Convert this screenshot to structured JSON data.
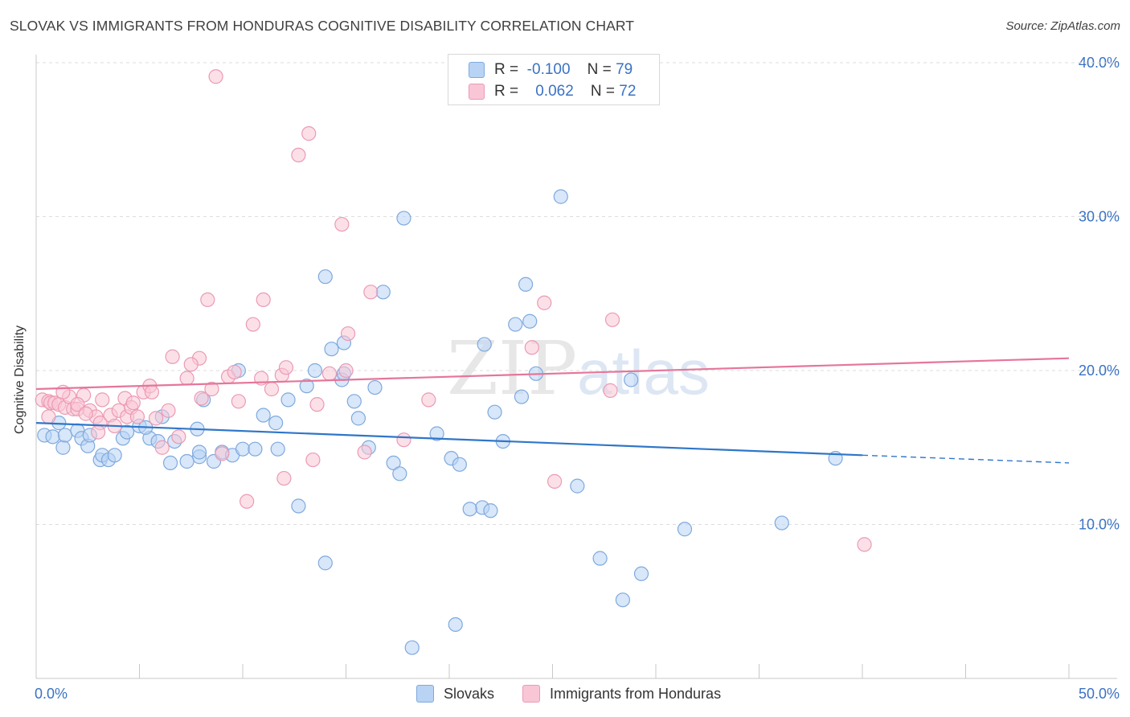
{
  "title": "SLOVAK VS IMMIGRANTS FROM HONDURAS COGNITIVE DISABILITY CORRELATION CHART",
  "source": "Source: ZipAtlas.com",
  "watermark": {
    "zip": "ZIP",
    "atlas": "atlas"
  },
  "legend_top": {
    "rows": [
      {
        "r_label": "R =",
        "r_value": "-0.100",
        "n_label": "N =",
        "n_value": "79"
      },
      {
        "r_label": "R =",
        "r_value": "0.062",
        "n_label": "N =",
        "n_value": "72"
      }
    ]
  },
  "legend_bottom": [
    "Slovaks",
    "Immigrants from Honduras"
  ],
  "colors": {
    "slovaks_fill": "#b8d3f4",
    "slovaks_stroke": "#7fa9de",
    "slovaks_line": "#2f76c9",
    "honduras_fill": "#f9c6d6",
    "honduras_stroke": "#eb9ab4",
    "honduras_line": "#e5769a",
    "axis_text": "#3a72c4",
    "grid": "#dddddd"
  },
  "chart_data": {
    "type": "scatter",
    "title": "SLOVAK VS IMMIGRANTS FROM HONDURAS COGNITIVE DISABILITY CORRELATION CHART",
    "xlabel": "",
    "ylabel": "Cognitive Disability",
    "xlim": [
      0,
      50
    ],
    "ylim": [
      0,
      40
    ],
    "x_tick_labels": [
      "0.0%",
      "50.0%"
    ],
    "y_tick_labels": [
      "10.0%",
      "20.0%",
      "30.0%",
      "40.0%"
    ],
    "y_tick_values": [
      10,
      20,
      30,
      40
    ],
    "grid": true,
    "legend": "top-center",
    "series": [
      {
        "name": "Slovaks",
        "r": -0.1,
        "n": 79,
        "trend": {
          "x0": 0,
          "y0": 16.6,
          "x1": 40,
          "y1": 14.5,
          "dashed_to_x": 50,
          "dashed_to_y": 14.0
        },
        "points": [
          [
            0.4,
            15.8
          ],
          [
            0.8,
            15.7
          ],
          [
            1.1,
            16.6
          ],
          [
            1.3,
            15.0
          ],
          [
            1.4,
            15.8
          ],
          [
            2.0,
            16.1
          ],
          [
            2.2,
            15.6
          ],
          [
            2.5,
            15.1
          ],
          [
            2.6,
            15.8
          ],
          [
            3.1,
            14.2
          ],
          [
            3.2,
            14.5
          ],
          [
            3.5,
            14.2
          ],
          [
            3.8,
            14.5
          ],
          [
            4.2,
            15.6
          ],
          [
            4.4,
            16.0
          ],
          [
            5.0,
            16.4
          ],
          [
            5.5,
            15.6
          ],
          [
            5.9,
            15.4
          ],
          [
            6.1,
            17.0
          ],
          [
            6.5,
            14.0
          ],
          [
            7.9,
            14.4
          ],
          [
            7.9,
            14.7
          ],
          [
            7.8,
            16.2
          ],
          [
            8.1,
            18.1
          ],
          [
            8.6,
            14.1
          ],
          [
            9.0,
            14.7
          ],
          [
            9.5,
            14.5
          ],
          [
            9.8,
            20.0
          ],
          [
            10.0,
            14.9
          ],
          [
            10.6,
            14.9
          ],
          [
            11.0,
            17.1
          ],
          [
            11.6,
            16.6
          ],
          [
            11.7,
            14.9
          ],
          [
            12.2,
            18.1
          ],
          [
            12.7,
            11.2
          ],
          [
            13.1,
            19.0
          ],
          [
            13.5,
            20.0
          ],
          [
            14.0,
            26.1
          ],
          [
            14.3,
            21.4
          ],
          [
            14.8,
            19.4
          ],
          [
            14.9,
            21.8
          ],
          [
            15.4,
            18.0
          ],
          [
            15.6,
            16.9
          ],
          [
            16.1,
            15.0
          ],
          [
            16.4,
            18.9
          ],
          [
            16.8,
            25.1
          ],
          [
            17.3,
            14.0
          ],
          [
            17.6,
            13.3
          ],
          [
            17.8,
            29.9
          ],
          [
            18.2,
            2.0
          ],
          [
            19.4,
            15.9
          ],
          [
            20.1,
            14.3
          ],
          [
            20.3,
            3.5
          ],
          [
            20.5,
            13.9
          ],
          [
            21.6,
            11.1
          ],
          [
            21.7,
            21.7
          ],
          [
            22.0,
            10.9
          ],
          [
            22.2,
            17.3
          ],
          [
            23.2,
            23.0
          ],
          [
            23.5,
            18.3
          ],
          [
            23.7,
            25.6
          ],
          [
            23.9,
            23.2
          ],
          [
            24.2,
            19.8
          ],
          [
            25.4,
            31.3
          ],
          [
            26.2,
            12.5
          ],
          [
            27.3,
            7.8
          ],
          [
            28.4,
            5.1
          ],
          [
            28.8,
            19.4
          ],
          [
            29.3,
            6.8
          ],
          [
            31.4,
            9.7
          ],
          [
            36.1,
            10.1
          ],
          [
            38.7,
            14.3
          ],
          [
            14.9,
            19.8
          ],
          [
            7.3,
            14.1
          ],
          [
            5.3,
            16.3
          ],
          [
            6.7,
            15.4
          ],
          [
            14.0,
            7.5
          ],
          [
            21.0,
            11.0
          ],
          [
            22.6,
            15.4
          ]
        ]
      },
      {
        "name": "Immigrants from Honduras",
        "r": 0.062,
        "n": 72,
        "trend": {
          "x0": 0,
          "y0": 18.8,
          "x1": 50,
          "y1": 20.8
        },
        "points": [
          [
            0.3,
            18.1
          ],
          [
            0.6,
            18.0
          ],
          [
            0.7,
            17.9
          ],
          [
            0.9,
            17.9
          ],
          [
            1.1,
            17.8
          ],
          [
            1.4,
            17.6
          ],
          [
            1.6,
            18.3
          ],
          [
            1.8,
            17.5
          ],
          [
            2.0,
            17.5
          ],
          [
            2.3,
            18.4
          ],
          [
            2.6,
            17.4
          ],
          [
            2.9,
            17.0
          ],
          [
            3.1,
            16.6
          ],
          [
            3.2,
            18.1
          ],
          [
            3.6,
            17.1
          ],
          [
            3.8,
            16.4
          ],
          [
            4.0,
            17.4
          ],
          [
            4.3,
            18.2
          ],
          [
            4.4,
            17.0
          ],
          [
            4.6,
            17.6
          ],
          [
            4.9,
            17.0
          ],
          [
            5.2,
            18.6
          ],
          [
            5.5,
            19.0
          ],
          [
            5.8,
            16.9
          ],
          [
            6.1,
            15.0
          ],
          [
            6.4,
            17.4
          ],
          [
            6.6,
            20.9
          ],
          [
            7.3,
            19.5
          ],
          [
            7.9,
            20.8
          ],
          [
            8.0,
            18.2
          ],
          [
            8.3,
            24.6
          ],
          [
            8.5,
            18.8
          ],
          [
            9.0,
            14.6
          ],
          [
            9.3,
            19.6
          ],
          [
            9.6,
            19.9
          ],
          [
            10.2,
            11.5
          ],
          [
            10.5,
            23.0
          ],
          [
            11.0,
            24.6
          ],
          [
            11.4,
            18.8
          ],
          [
            11.9,
            19.7
          ],
          [
            12.1,
            20.2
          ],
          [
            12.7,
            34.0
          ],
          [
            13.2,
            35.4
          ],
          [
            13.4,
            14.2
          ],
          [
            13.6,
            17.8
          ],
          [
            14.2,
            19.8
          ],
          [
            14.8,
            29.5
          ],
          [
            15.1,
            22.4
          ],
          [
            15.9,
            14.7
          ],
          [
            16.2,
            25.1
          ],
          [
            17.8,
            15.5
          ],
          [
            19.0,
            18.1
          ],
          [
            24.0,
            21.5
          ],
          [
            24.6,
            24.4
          ],
          [
            25.1,
            12.8
          ],
          [
            27.8,
            18.7
          ],
          [
            27.9,
            23.3
          ],
          [
            40.1,
            8.7
          ],
          [
            8.7,
            39.1
          ],
          [
            1.3,
            18.6
          ],
          [
            2.0,
            17.8
          ],
          [
            3.0,
            16.0
          ],
          [
            4.7,
            17.9
          ],
          [
            5.6,
            18.6
          ],
          [
            6.9,
            15.7
          ],
          [
            7.5,
            20.4
          ],
          [
            9.8,
            18.0
          ],
          [
            10.9,
            19.5
          ],
          [
            12.0,
            13.0
          ],
          [
            0.6,
            17.0
          ],
          [
            2.4,
            17.2
          ],
          [
            15.0,
            20.0
          ]
        ]
      }
    ]
  }
}
